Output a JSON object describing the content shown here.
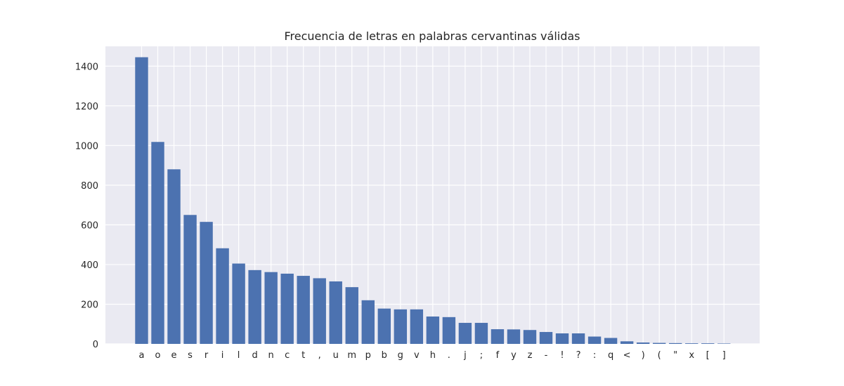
{
  "chart_data": {
    "type": "bar",
    "title": "Frecuencia de letras en palabras cervantinas válidas",
    "xlabel": "",
    "ylabel": "",
    "ylim": [
      0,
      1500
    ],
    "yticks": [
      0,
      200,
      400,
      600,
      800,
      1000,
      1200,
      1400
    ],
    "grid": true,
    "categories": [
      "a",
      "o",
      "e",
      "s",
      "r",
      "i",
      "l",
      "d",
      "n",
      "c",
      "t",
      ",",
      "u",
      "m",
      "p",
      "b",
      "g",
      "v",
      "h",
      ".",
      "j",
      ";",
      "f",
      "y",
      "z",
      "-",
      "!",
      "?",
      ":",
      "q",
      "<",
      ")",
      "(",
      "\"",
      "x",
      "[",
      "]"
    ],
    "values": [
      1445,
      1018,
      880,
      650,
      615,
      482,
      405,
      372,
      362,
      354,
      343,
      331,
      315,
      286,
      220,
      178,
      174,
      174,
      138,
      135,
      106,
      106,
      74,
      73,
      70,
      60,
      53,
      53,
      37,
      30,
      13,
      7,
      5,
      4,
      3,
      3,
      2
    ],
    "colors": {
      "bar": "#4c72b0",
      "plot_bg": "#eaeaf2",
      "grid": "#ffffff",
      "text": "#262626"
    }
  }
}
